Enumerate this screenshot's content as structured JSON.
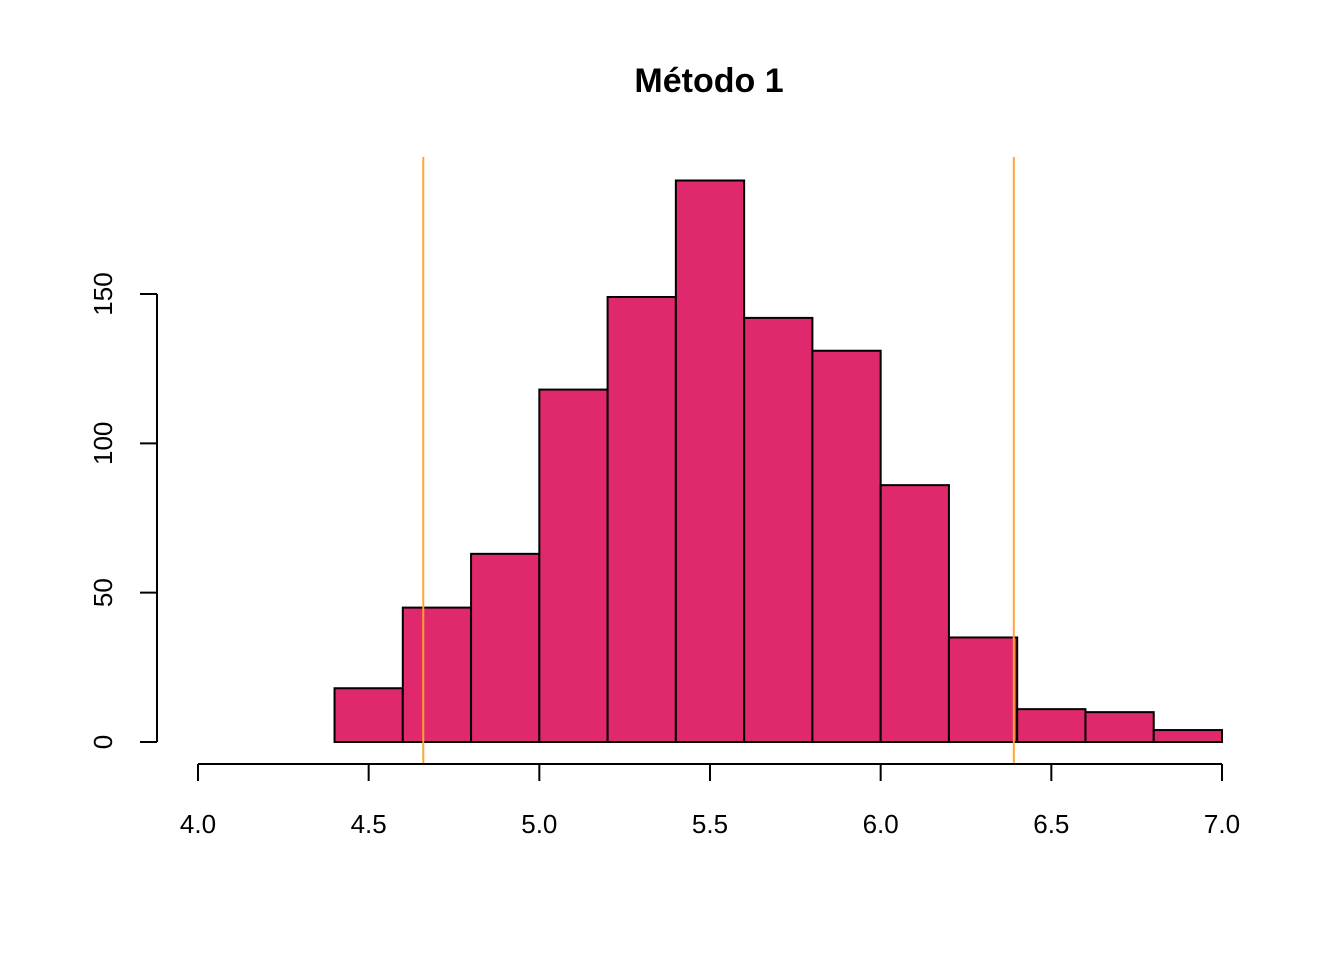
{
  "chart_data": {
    "type": "bar",
    "title": "Método 1",
    "xlabel": "",
    "ylabel": "",
    "bin_edges": [
      4.4,
      4.6,
      4.8,
      5.0,
      5.2,
      5.4,
      5.6,
      5.8,
      6.0,
      6.2,
      6.4,
      6.6,
      6.8,
      7.0
    ],
    "values": [
      18,
      45,
      63,
      118,
      149,
      188,
      142,
      131,
      86,
      35,
      11,
      10,
      4
    ],
    "xlim": [
      4.0,
      7.0
    ],
    "ylim": [
      0,
      188
    ],
    "x_ticks": [
      "4.0",
      "4.5",
      "5.0",
      "5.5",
      "6.0",
      "6.5",
      "7.0"
    ],
    "y_ticks": [
      "0",
      "50",
      "100",
      "150"
    ],
    "vertical_lines": [
      4.66,
      6.39
    ],
    "grid": false,
    "legend": "none",
    "colors": {
      "bar_fill": "#E0286C",
      "bar_stroke": "#000000",
      "vertical_line": "#FFA533"
    }
  }
}
